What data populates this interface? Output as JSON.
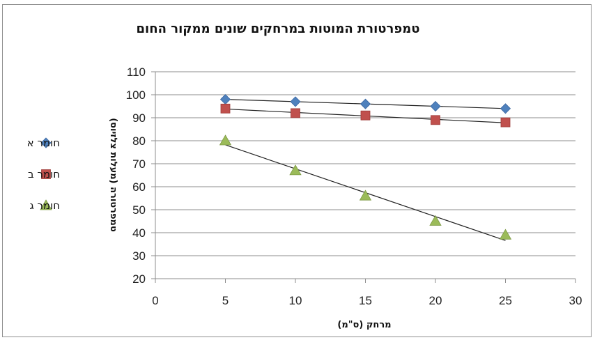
{
  "chart_data": {
    "type": "scatter",
    "title": "טמפרטורת המוטות במרחקים שונים ממקור החום",
    "xlabel": "מרחק (ס\"מ)",
    "ylabel": "טמפרטורה (מעלות צלזיוס)",
    "xlim": [
      0,
      30
    ],
    "ylim": [
      20,
      110
    ],
    "xticks": [
      0,
      5,
      10,
      15,
      20,
      25,
      30
    ],
    "yticks": [
      20,
      30,
      40,
      50,
      60,
      70,
      80,
      90,
      100,
      110
    ],
    "grid": true,
    "legend_position": "left",
    "series": [
      {
        "name": "חומר א",
        "marker": "diamond",
        "color": "#4f81bd",
        "x": [
          5,
          10,
          15,
          20,
          25
        ],
        "y": [
          98,
          97,
          96,
          95,
          94
        ],
        "trendline": true
      },
      {
        "name": "חומר ב",
        "marker": "square",
        "color": "#c0504d",
        "x": [
          5,
          10,
          15,
          20,
          25
        ],
        "y": [
          94,
          92,
          91,
          89,
          88
        ],
        "trendline": true
      },
      {
        "name": "חומר ג",
        "marker": "triangle",
        "color": "#9bbb59",
        "x": [
          5,
          10,
          15,
          20,
          25
        ],
        "y": [
          80,
          67,
          56,
          45,
          39
        ],
        "trendline": true
      }
    ]
  }
}
